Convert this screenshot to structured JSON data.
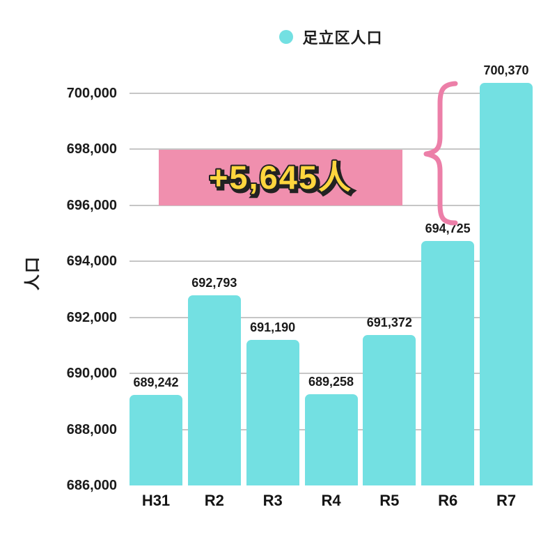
{
  "legend": {
    "label": "足立区人口",
    "marker_color": "#73e0e2"
  },
  "chart_data": {
    "type": "bar",
    "title": "",
    "series_name": "足立区人口",
    "categories": [
      "H31",
      "R2",
      "R3",
      "R4",
      "R5",
      "R6",
      "R7"
    ],
    "values": [
      689242,
      692793,
      691190,
      689258,
      691372,
      694725,
      700370
    ],
    "value_labels": [
      "689,242",
      "692,793",
      "691,190",
      "689,258",
      "691,372",
      "694,725",
      "700,370"
    ],
    "xlabel": "",
    "ylabel": "人口",
    "ylim": [
      686000,
      700000
    ],
    "ytick_step": 2000,
    "yticks": [
      {
        "value": 700000,
        "label": "700,000",
        "gridline": true
      },
      {
        "value": 698000,
        "label": "698,000",
        "gridline": true
      },
      {
        "value": 696000,
        "label": "696,000",
        "gridline": true
      },
      {
        "value": 694000,
        "label": "694,000",
        "gridline": true
      },
      {
        "value": 692000,
        "label": "692,000",
        "gridline": true
      },
      {
        "value": 690000,
        "label": "690,000",
        "gridline": true
      },
      {
        "value": 688000,
        "label": "688,000",
        "gridline": true
      },
      {
        "value": 686000,
        "label": "686,000",
        "gridline": false
      }
    ],
    "grid": true,
    "legend_position": "top",
    "bar_color": "#73e0e2",
    "grid_color": "#c6c6c6",
    "annotation": {
      "text": "+5,645人",
      "box_color": "#f08fae",
      "text_color": "#ffd63e",
      "outline_color": "#222222",
      "brace_color": "#ec7fa8"
    }
  }
}
